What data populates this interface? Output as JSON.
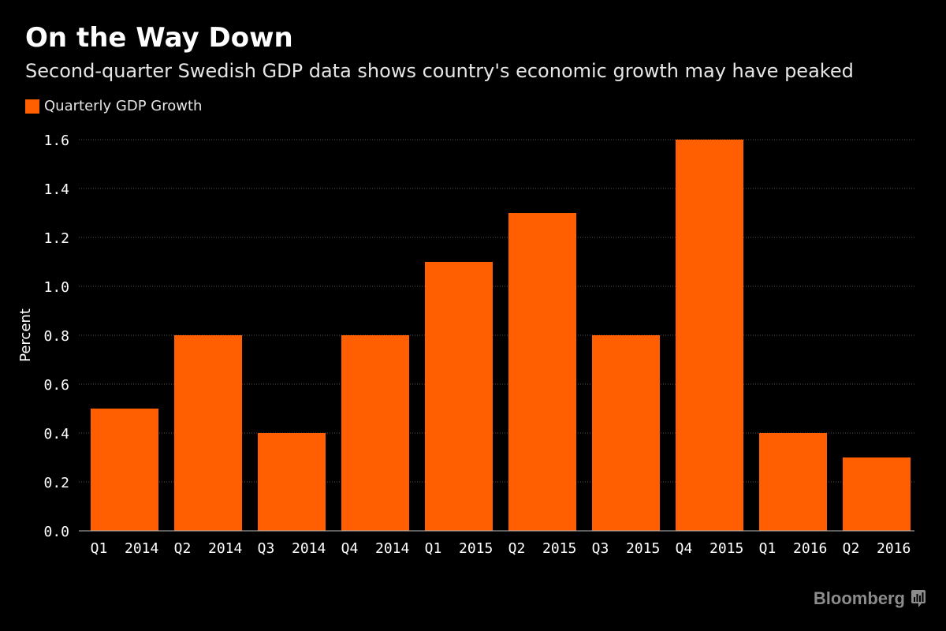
{
  "header": {
    "title": "On the Way Down",
    "subtitle": "Second-quarter Swedish GDP data shows country's economic growth may have peaked"
  },
  "legend": {
    "label": "Quarterly GDP Growth"
  },
  "brand": {
    "name": "Bloomberg",
    "icon": "bloomberg-chart-icon"
  },
  "colors": {
    "background": "#000000",
    "bar": "#ff5f00",
    "grid": "#555555",
    "axis_text": "#ffffff"
  },
  "chart_data": {
    "type": "bar",
    "title": "On the Way Down",
    "subtitle": "Second-quarter Swedish GDP data shows country's economic growth may have peaked",
    "xlabel": "",
    "ylabel": "Percent",
    "ylim": [
      0,
      1.6
    ],
    "yticks": [
      "0.0",
      "0.2",
      "0.4",
      "0.6",
      "0.8",
      "1.0",
      "1.2",
      "1.4",
      "1.6"
    ],
    "grid": true,
    "legend_position": "top-left",
    "categories": [
      "Q1  2014",
      "Q2  2014",
      "Q3  2014",
      "Q4  2014",
      "Q1  2015",
      "Q2  2015",
      "Q3  2015",
      "Q4  2015",
      "Q1  2016",
      "Q2  2016"
    ],
    "series": [
      {
        "name": "Quarterly GDP Growth",
        "values": [
          0.5,
          0.8,
          0.4,
          0.8,
          1.1,
          1.3,
          0.8,
          1.6,
          0.4,
          0.3
        ]
      }
    ]
  }
}
